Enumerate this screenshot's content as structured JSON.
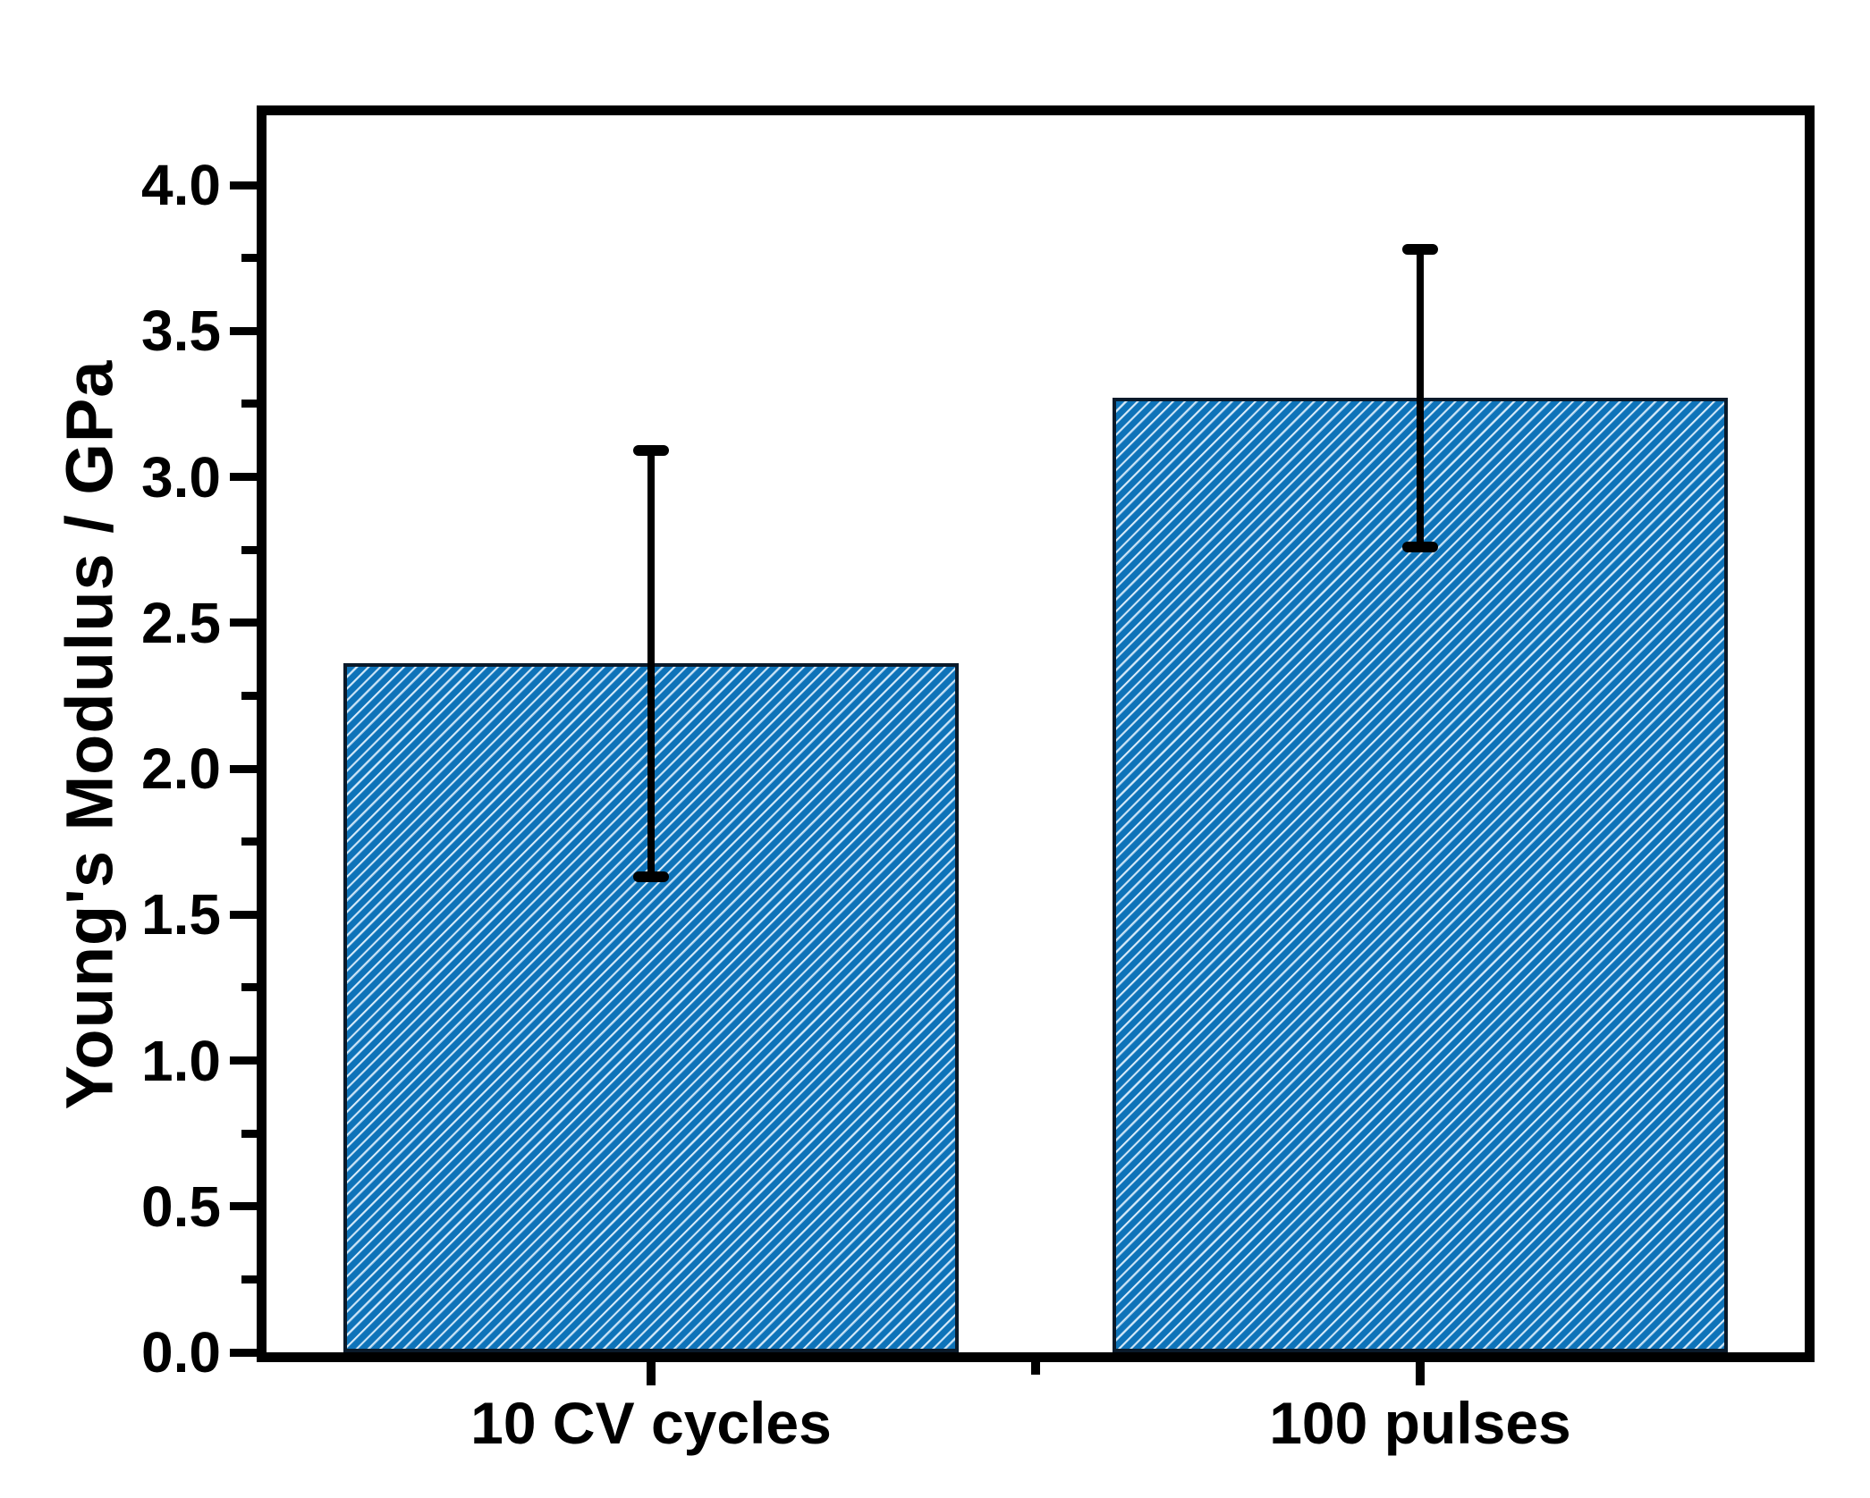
{
  "chart_data": {
    "type": "bar",
    "title": "",
    "ylabel": "Young's Modulus / GPa",
    "xlabel": "",
    "categories": [
      "10 CV cycles",
      "100 pulses"
    ],
    "values": [
      2.36,
      3.27
    ],
    "errors": [
      0.73,
      0.51
    ],
    "ylim": [
      0,
      4.25
    ],
    "ytick_major_step": 0.5,
    "ytick_minor_step": 0.25,
    "ytick_labels": [
      "0.0",
      "0.5",
      "1.0",
      "1.5",
      "2.0",
      "2.5",
      "3.0",
      "3.5",
      "4.0"
    ],
    "grid": false,
    "legend": false,
    "bar_style": {
      "fill_color": "#0e73b9",
      "hatch_color": "#ddeefa",
      "hatch_halo_color": "#8fc1e6",
      "hatch_pattern": "diagonal-forward-45deg",
      "edge_color": "#0a1a2a",
      "error_bar_color": "#000000"
    },
    "axis_color": "#000000",
    "text_color": "#000000",
    "background_color": "#ffffff"
  }
}
